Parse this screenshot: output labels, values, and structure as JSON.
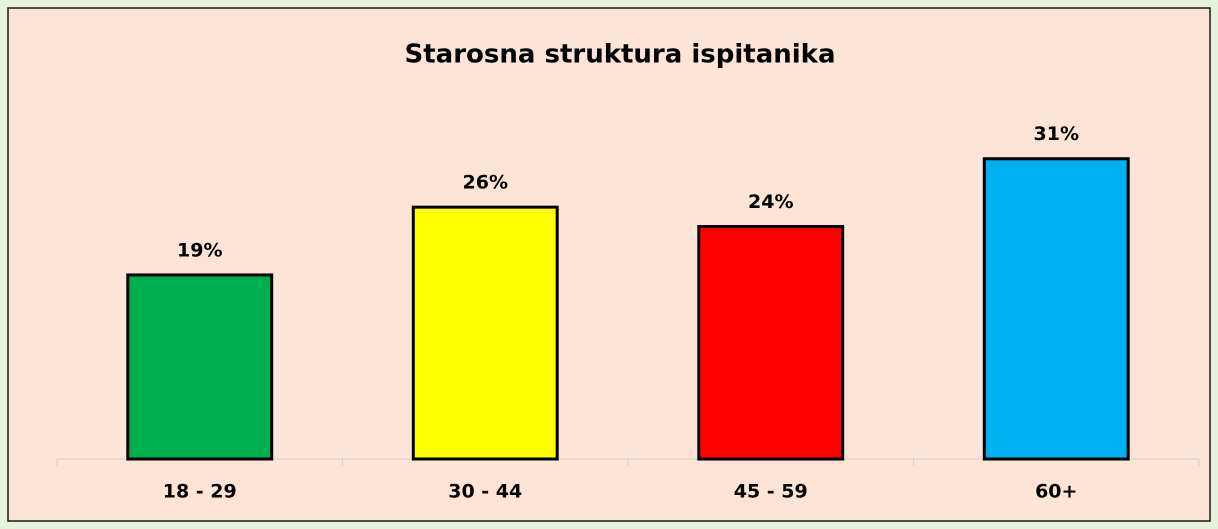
{
  "chart_data": {
    "type": "bar",
    "title": "Starosna struktura ispitanika",
    "categories": [
      "18 - 29",
      "30 - 44",
      "45 - 59",
      "60+"
    ],
    "values": [
      19,
      26,
      24,
      31
    ],
    "value_labels": [
      "19%",
      "26%",
      "24%",
      "31%"
    ],
    "colors": [
      "#00b050",
      "#ffff00",
      "#ff0000",
      "#00b0f0"
    ],
    "ylim": [
      0,
      35
    ]
  }
}
